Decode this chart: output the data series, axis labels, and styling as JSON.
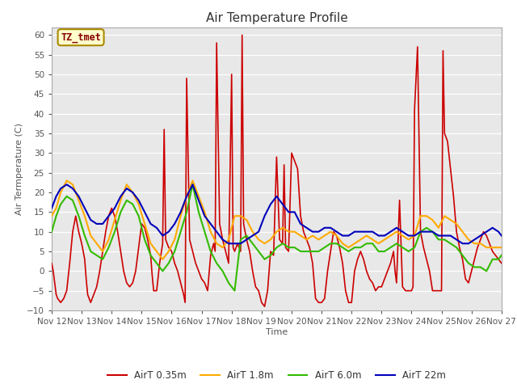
{
  "title": "Air Temperature Profile",
  "xlabel": "Time",
  "ylabel": "Air Termperature (C)",
  "ylim": [
    -10,
    62
  ],
  "yticks": [
    -10,
    -5,
    0,
    5,
    10,
    15,
    20,
    25,
    30,
    35,
    40,
    45,
    50,
    55,
    60
  ],
  "x_start": 12,
  "x_end": 27,
  "x_ticks": [
    12,
    13,
    14,
    15,
    16,
    17,
    18,
    19,
    20,
    21,
    22,
    23,
    24,
    25,
    26,
    27
  ],
  "x_tick_labels": [
    "Nov 12",
    "Nov 13",
    "Nov 14",
    "Nov 15",
    "Nov 16",
    "Nov 17",
    "Nov 18",
    "Nov 19",
    "Nov 20",
    "Nov 21",
    "Nov 22",
    "Nov 23",
    "Nov 24",
    "Nov 25",
    "Nov 26",
    "Nov 27"
  ],
  "colors": {
    "red": "#cc0000",
    "orange": "#ffaa00",
    "green": "#33bb00",
    "blue": "#0000bb"
  },
  "legend_labels": [
    "AirT 0.35m",
    "AirT 1.8m",
    "AirT 6.0m",
    "AirT 22m"
  ],
  "annotation_text": "TZ_tmet",
  "annotation_color": "#880000",
  "annotation_bg": "#ffffcc",
  "annotation_border": "#aa8800",
  "title_fontsize": 11,
  "axis_label_fontsize": 8,
  "tick_fontsize": 7.5,
  "red_data_x": [
    12.0,
    12.05,
    12.1,
    12.15,
    12.2,
    12.3,
    12.4,
    12.5,
    12.6,
    12.7,
    12.8,
    12.9,
    13.0,
    13.1,
    13.15,
    13.2,
    13.3,
    13.4,
    13.5,
    13.6,
    13.7,
    13.8,
    13.9,
    14.0,
    14.1,
    14.2,
    14.3,
    14.4,
    14.5,
    14.6,
    14.7,
    14.8,
    14.9,
    15.0,
    15.1,
    15.2,
    15.3,
    15.35,
    15.4,
    15.5,
    15.6,
    15.7,
    15.75,
    15.8,
    15.9,
    16.0,
    16.1,
    16.2,
    16.3,
    16.4,
    16.45,
    16.5,
    16.6,
    16.7,
    16.8,
    16.9,
    17.0,
    17.1,
    17.2,
    17.3,
    17.4,
    17.45,
    17.5,
    17.6,
    17.7,
    17.8,
    17.9,
    18.0,
    18.05,
    18.1,
    18.2,
    18.3,
    18.35,
    18.4,
    18.5,
    18.6,
    18.7,
    18.8,
    18.9,
    19.0,
    19.1,
    19.2,
    19.3,
    19.4,
    19.5,
    19.6,
    19.7,
    19.75,
    19.8,
    19.9,
    20.0,
    20.1,
    20.2,
    20.3,
    20.4,
    20.5,
    20.6,
    20.7,
    20.8,
    20.9,
    21.0,
    21.1,
    21.2,
    21.3,
    21.4,
    21.5,
    21.6,
    21.7,
    21.8,
    21.9,
    22.0,
    22.1,
    22.2,
    22.3,
    22.4,
    22.5,
    22.6,
    22.7,
    22.8,
    22.9,
    23.0,
    23.1,
    23.2,
    23.3,
    23.4,
    23.45,
    23.5,
    23.6,
    23.7,
    23.8,
    23.9,
    24.0,
    24.05,
    24.1,
    24.2,
    24.3,
    24.4,
    24.5,
    24.6,
    24.7,
    24.8,
    24.9,
    25.0,
    25.05,
    25.1,
    25.2,
    25.3,
    25.4,
    25.5,
    25.6,
    25.7,
    25.8,
    25.9,
    26.0,
    26.1,
    26.2,
    26.3,
    26.4,
    26.5,
    26.6,
    26.7,
    26.8,
    26.9,
    27.0
  ],
  "red_data_y": [
    2,
    0,
    -3,
    -6,
    -7,
    -8,
    -7,
    -5,
    2,
    10,
    14,
    10,
    7,
    3,
    -2,
    -6,
    -8,
    -6,
    -4,
    0,
    5,
    10,
    14,
    16,
    14,
    10,
    5,
    0,
    -3,
    -4,
    -3,
    0,
    6,
    12,
    11,
    8,
    4,
    -1,
    -5,
    -5,
    2,
    7,
    36,
    8,
    6,
    5,
    2,
    0,
    -3,
    -6,
    -8,
    49,
    8,
    5,
    2,
    0,
    -2,
    -3,
    -5,
    4,
    7,
    5,
    58,
    12,
    8,
    5,
    2,
    50,
    6,
    5,
    7,
    5,
    60,
    12,
    8,
    5,
    0,
    -4,
    -5,
    -8,
    -9,
    -5,
    5,
    4,
    29,
    8,
    7,
    27,
    6,
    5,
    30,
    28,
    26,
    14,
    10,
    8,
    6,
    2,
    -7,
    -8,
    -8,
    -7,
    0,
    5,
    10,
    9,
    6,
    2,
    -5,
    -8,
    -8,
    0,
    3,
    5,
    3,
    0,
    -2,
    -3,
    -5,
    -4,
    -4,
    -2,
    0,
    2,
    5,
    0,
    -3,
    18,
    -4,
    -5,
    -5,
    -5,
    -4,
    41,
    57,
    10,
    6,
    3,
    0,
    -5,
    -5,
    -5,
    -5,
    56,
    35,
    33,
    26,
    19,
    10,
    6,
    3,
    -2,
    -3,
    0,
    3,
    6,
    8,
    10,
    9,
    7,
    5,
    4,
    3,
    2
  ],
  "orange_data_x": [
    12.0,
    12.15,
    12.3,
    12.5,
    12.7,
    12.9,
    13.1,
    13.3,
    13.5,
    13.7,
    13.9,
    14.1,
    14.3,
    14.5,
    14.7,
    14.9,
    15.1,
    15.3,
    15.5,
    15.7,
    15.9,
    16.1,
    16.3,
    16.5,
    16.7,
    16.9,
    17.1,
    17.3,
    17.5,
    17.7,
    17.9,
    18.1,
    18.3,
    18.5,
    18.7,
    18.9,
    19.1,
    19.3,
    19.5,
    19.7,
    19.9,
    20.1,
    20.3,
    20.5,
    20.7,
    20.9,
    21.1,
    21.3,
    21.5,
    21.7,
    21.9,
    22.1,
    22.3,
    22.5,
    22.7,
    22.9,
    23.1,
    23.3,
    23.5,
    23.7,
    23.9,
    24.1,
    24.3,
    24.5,
    24.7,
    24.9,
    25.1,
    25.3,
    25.5,
    25.7,
    25.9,
    26.1,
    26.3,
    26.5,
    26.7,
    26.9,
    27.0
  ],
  "orange_data_y": [
    14,
    16,
    20,
    23,
    22,
    18,
    14,
    9,
    7,
    5,
    8,
    13,
    18,
    22,
    20,
    17,
    12,
    7,
    5,
    3,
    5,
    8,
    14,
    19,
    23,
    19,
    15,
    10,
    7,
    6,
    8,
    14,
    14,
    13,
    10,
    8,
    7,
    8,
    10,
    11,
    10,
    10,
    9,
    8,
    9,
    8,
    9,
    10,
    9,
    7,
    6,
    7,
    8,
    9,
    8,
    7,
    8,
    9,
    10,
    9,
    8,
    9,
    14,
    14,
    13,
    11,
    14,
    13,
    12,
    10,
    8,
    7,
    7,
    6,
    6,
    6,
    6
  ],
  "green_data_x": [
    12.0,
    12.15,
    12.3,
    12.5,
    12.7,
    12.9,
    13.1,
    13.3,
    13.5,
    13.7,
    13.9,
    14.1,
    14.3,
    14.5,
    14.7,
    14.9,
    15.1,
    15.3,
    15.5,
    15.7,
    15.9,
    16.1,
    16.3,
    16.5,
    16.7,
    16.9,
    17.1,
    17.3,
    17.5,
    17.7,
    17.9,
    18.1,
    18.3,
    18.5,
    18.7,
    18.9,
    19.1,
    19.3,
    19.5,
    19.7,
    19.9,
    20.1,
    20.3,
    20.5,
    20.7,
    20.9,
    21.1,
    21.3,
    21.5,
    21.7,
    21.9,
    22.1,
    22.3,
    22.5,
    22.7,
    22.9,
    23.1,
    23.3,
    23.5,
    23.7,
    23.9,
    24.1,
    24.3,
    24.5,
    24.7,
    24.9,
    25.1,
    25.3,
    25.5,
    25.7,
    25.9,
    26.1,
    26.3,
    26.5,
    26.7,
    26.9,
    27.0
  ],
  "green_data_y": [
    10,
    14,
    17,
    19,
    18,
    14,
    9,
    5,
    4,
    3,
    6,
    10,
    15,
    18,
    17,
    14,
    8,
    4,
    2,
    0,
    2,
    5,
    10,
    15,
    22,
    15,
    10,
    5,
    2,
    0,
    -3,
    -5,
    8,
    9,
    7,
    5,
    3,
    4,
    6,
    7,
    6,
    6,
    5,
    5,
    5,
    5,
    6,
    7,
    7,
    6,
    5,
    6,
    6,
    7,
    7,
    5,
    5,
    6,
    7,
    6,
    5,
    6,
    10,
    11,
    10,
    8,
    8,
    7,
    6,
    4,
    2,
    1,
    1,
    0,
    3,
    3,
    4
  ],
  "blue_data_x": [
    12.0,
    12.15,
    12.3,
    12.5,
    12.7,
    12.9,
    13.1,
    13.3,
    13.5,
    13.7,
    13.9,
    14.1,
    14.3,
    14.5,
    14.7,
    14.9,
    15.1,
    15.3,
    15.5,
    15.7,
    15.9,
    16.1,
    16.3,
    16.5,
    16.7,
    16.9,
    17.1,
    17.3,
    17.5,
    17.7,
    17.9,
    18.1,
    18.3,
    18.5,
    18.7,
    18.9,
    19.1,
    19.3,
    19.5,
    19.7,
    19.9,
    20.1,
    20.3,
    20.5,
    20.7,
    20.9,
    21.1,
    21.3,
    21.5,
    21.7,
    21.9,
    22.1,
    22.3,
    22.5,
    22.7,
    22.9,
    23.1,
    23.3,
    23.5,
    23.7,
    23.9,
    24.1,
    24.3,
    24.5,
    24.7,
    24.9,
    25.1,
    25.3,
    25.5,
    25.7,
    25.9,
    26.1,
    26.3,
    26.5,
    26.7,
    26.9,
    27.0
  ],
  "blue_data_y": [
    16,
    19,
    21,
    22,
    21,
    19,
    16,
    13,
    12,
    12,
    14,
    16,
    19,
    21,
    20,
    18,
    15,
    12,
    11,
    9,
    10,
    12,
    15,
    19,
    22,
    18,
    14,
    12,
    10,
    8,
    7,
    7,
    7,
    8,
    9,
    10,
    14,
    17,
    19,
    17,
    15,
    15,
    12,
    11,
    10,
    10,
    11,
    11,
    10,
    9,
    9,
    10,
    10,
    10,
    10,
    9,
    9,
    10,
    11,
    10,
    9,
    9,
    10,
    10,
    10,
    9,
    9,
    9,
    8,
    7,
    7,
    8,
    9,
    10,
    11,
    10,
    9
  ]
}
